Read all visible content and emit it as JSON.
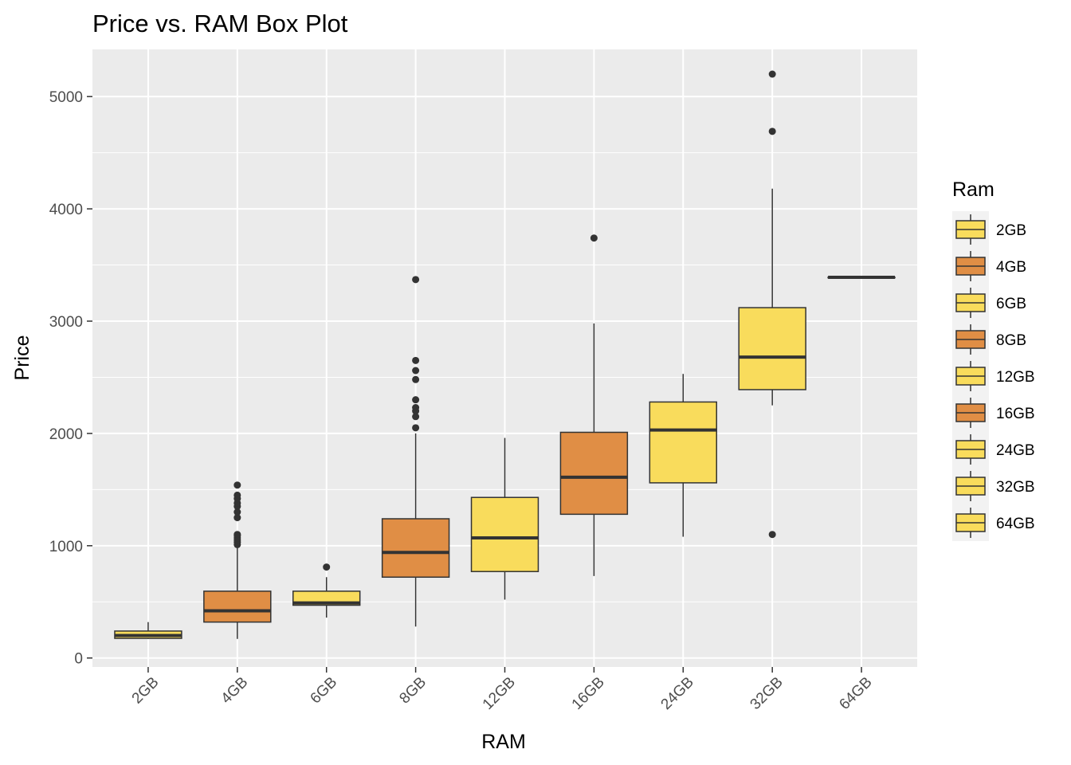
{
  "chart_data": {
    "type": "box",
    "title": "Price vs. RAM Box Plot",
    "xlabel": "RAM",
    "ylabel": "Price",
    "ylim": [
      -80,
      5420
    ],
    "yticks": [
      0,
      1000,
      2000,
      3000,
      4000,
      5000
    ],
    "grid": true,
    "legend_position": "right",
    "legend_title": "Ram",
    "colors": {
      "yellow": "#F9DC5C",
      "orange": "#E08E45",
      "line": "#333333",
      "panel": "#EBEBEB",
      "grid": "#ffffff"
    },
    "categories": [
      "2GB",
      "4GB",
      "6GB",
      "8GB",
      "12GB",
      "16GB",
      "24GB",
      "32GB",
      "64GB"
    ],
    "boxes": [
      {
        "name": "2GB",
        "fill": "yellow",
        "whisker_low": 170,
        "q1": 175,
        "median": 200,
        "q3": 240,
        "whisker_high": 320,
        "outliers": []
      },
      {
        "name": "4GB",
        "fill": "orange",
        "whisker_low": 170,
        "q1": 320,
        "median": 420,
        "q3": 595,
        "whisker_high": 1000,
        "outliers": [
          1010,
          1030,
          1050,
          1070,
          1090,
          1100,
          1250,
          1300,
          1350,
          1380,
          1420,
          1450,
          1540
        ]
      },
      {
        "name": "6GB",
        "fill": "yellow",
        "whisker_low": 360,
        "q1": 470,
        "median": 490,
        "q3": 595,
        "whisker_high": 720,
        "outliers": [
          810
        ]
      },
      {
        "name": "8GB",
        "fill": "orange",
        "whisker_low": 280,
        "q1": 720,
        "median": 940,
        "q3": 1240,
        "whisker_high": 2000,
        "outliers": [
          2050,
          2150,
          2200,
          2230,
          2300,
          2480,
          2560,
          2650,
          3370
        ]
      },
      {
        "name": "12GB",
        "fill": "yellow",
        "whisker_low": 520,
        "q1": 770,
        "median": 1070,
        "q3": 1430,
        "whisker_high": 1960,
        "outliers": []
      },
      {
        "name": "16GB",
        "fill": "orange",
        "whisker_low": 730,
        "q1": 1280,
        "median": 1610,
        "q3": 2010,
        "whisker_high": 2980,
        "outliers": [
          3740
        ]
      },
      {
        "name": "24GB",
        "fill": "yellow",
        "whisker_low": 1080,
        "q1": 1560,
        "median": 2030,
        "q3": 2280,
        "whisker_high": 2530,
        "outliers": []
      },
      {
        "name": "32GB",
        "fill": "yellow",
        "whisker_low": 2250,
        "q1": 2390,
        "median": 2680,
        "q3": 3120,
        "whisker_high": 4180,
        "outliers": [
          1100,
          4690,
          5200
        ]
      },
      {
        "name": "64GB",
        "fill": "yellow",
        "whisker_low": 3390,
        "q1": 3390,
        "median": 3390,
        "q3": 3390,
        "whisker_high": 3390,
        "outliers": []
      }
    ]
  }
}
